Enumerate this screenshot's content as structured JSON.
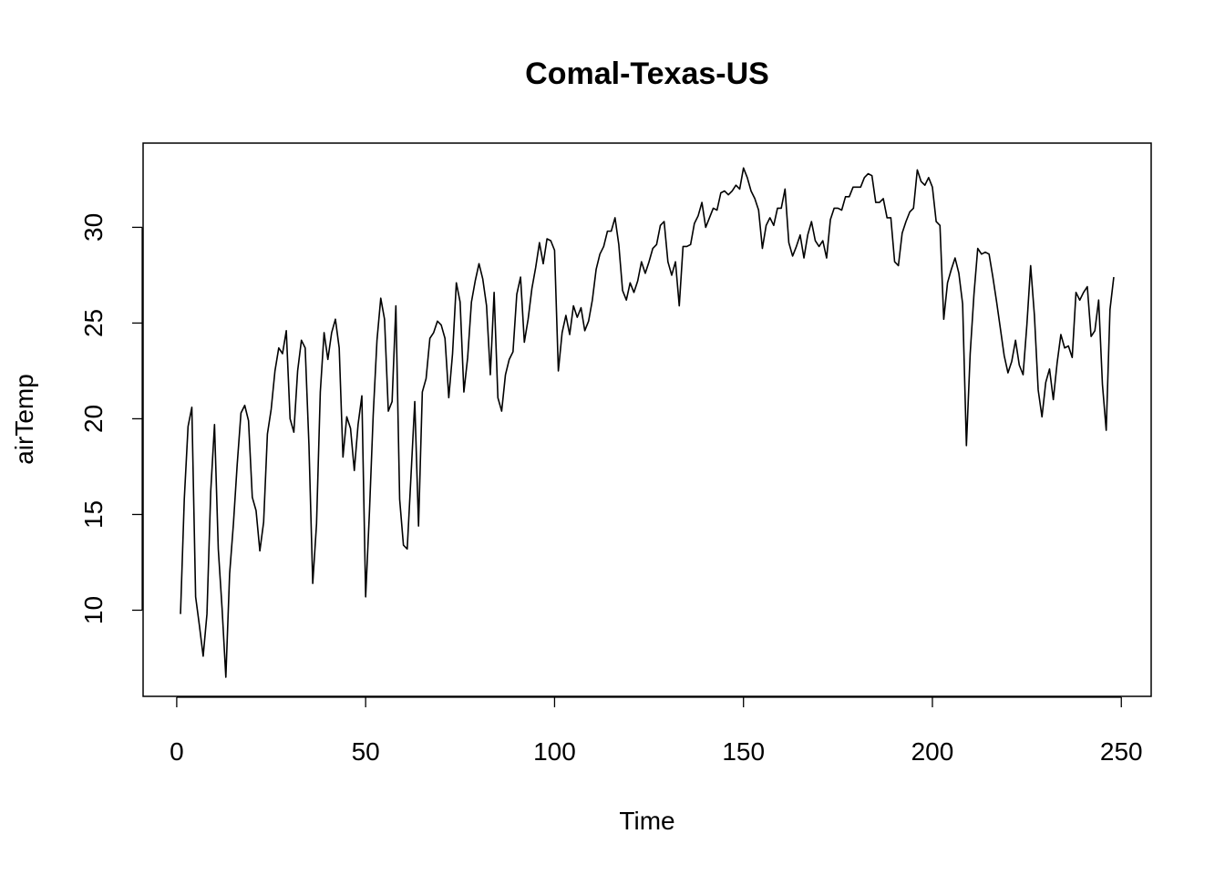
{
  "chart_data": {
    "type": "line",
    "title": "Comal-Texas-US",
    "xlabel": "Time",
    "ylabel": "airTemp",
    "xlim": [
      -8.9,
      257.9
    ],
    "ylim": [
      5.5,
      34.4
    ],
    "xticks": [
      0,
      50,
      100,
      150,
      200,
      250
    ],
    "yticks": [
      10,
      15,
      20,
      25,
      30
    ],
    "grid": false,
    "legend": "none",
    "series": [
      {
        "x_start": 1,
        "values": [
          9.8,
          15.8,
          19.6,
          20.6,
          10.7,
          9.2,
          7.6,
          9.8,
          16.2,
          19.7,
          13.2,
          10.1,
          6.5,
          11.9,
          14.5,
          17.6,
          20.3,
          20.7,
          19.9,
          15.9,
          15.2,
          13.1,
          14.6,
          19.2,
          20.5,
          22.5,
          23.7,
          23.4,
          24.6,
          20.0,
          19.3,
          22.5,
          24.1,
          23.7,
          18.6,
          11.4,
          14.5,
          21.4,
          24.5,
          23.1,
          24.5,
          25.2,
          23.7,
          18.0,
          20.1,
          19.5,
          17.3,
          19.7,
          21.2,
          10.7,
          15.1,
          20.2,
          24.1,
          26.3,
          25.2,
          20.4,
          20.9,
          25.9,
          15.8,
          13.4,
          13.2,
          17.0,
          20.9,
          14.4,
          21.4,
          22.1,
          24.2,
          24.5,
          25.1,
          24.9,
          24.2,
          21.1,
          23.4,
          27.1,
          26.1,
          21.4,
          23.2,
          26.1,
          27.2,
          28.1,
          27.3,
          25.9,
          22.3,
          26.6,
          21.1,
          20.4,
          22.3,
          23.1,
          23.5,
          26.5,
          27.4,
          24.0,
          25.2,
          26.8,
          27.9,
          29.2,
          28.1,
          29.4,
          29.3,
          28.8,
          22.5,
          24.5,
          25.4,
          24.4,
          25.9,
          25.3,
          25.8,
          24.6,
          25.1,
          26.2,
          27.8,
          28.6,
          29.0,
          29.8,
          29.8,
          30.5,
          29.1,
          26.7,
          26.2,
          27.1,
          26.6,
          27.2,
          28.2,
          27.6,
          28.2,
          28.9,
          29.1,
          30.1,
          30.3,
          28.2,
          27.5,
          28.2,
          25.9,
          29.0,
          29.0,
          29.1,
          30.2,
          30.6,
          31.3,
          30.0,
          30.5,
          31.0,
          30.9,
          31.8,
          31.9,
          31.7,
          31.9,
          32.2,
          32.0,
          33.1,
          32.6,
          31.9,
          31.5,
          30.9,
          28.9,
          30.1,
          30.5,
          30.1,
          31.0,
          31.0,
          32.0,
          29.2,
          28.5,
          29.0,
          29.6,
          28.4,
          29.6,
          30.3,
          29.3,
          29.0,
          29.3,
          28.4,
          30.4,
          31.0,
          31.0,
          30.9,
          31.6,
          31.6,
          32.1,
          32.1,
          32.1,
          32.6,
          32.8,
          32.7,
          31.3,
          31.3,
          31.5,
          30.5,
          30.5,
          28.2,
          28.0,
          29.7,
          30.3,
          30.8,
          31.0,
          33.0,
          32.4,
          32.2,
          32.6,
          32.1,
          30.3,
          30.1,
          25.2,
          27.1,
          27.8,
          28.4,
          27.6,
          26.0,
          18.6,
          23.4,
          26.5,
          28.9,
          28.6,
          28.7,
          28.6,
          27.4,
          26.1,
          24.7,
          23.3,
          22.4,
          23.0,
          24.1,
          22.8,
          22.3,
          24.9,
          28.0,
          25.4,
          21.5,
          20.1,
          21.9,
          22.6,
          21.0,
          22.9,
          24.4,
          23.7,
          23.8,
          23.2,
          26.6,
          26.2,
          26.6,
          26.9,
          24.3,
          24.6,
          26.2,
          21.8,
          19.4,
          25.7,
          27.4
        ]
      }
    ]
  }
}
